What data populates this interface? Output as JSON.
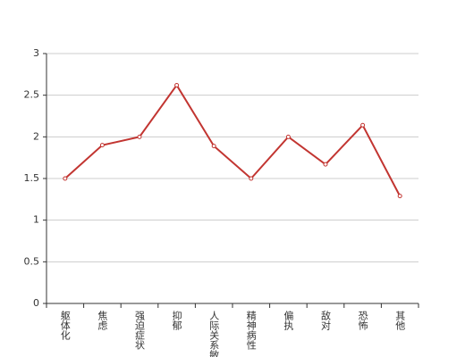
{
  "chart_data": {
    "type": "line",
    "categories": [
      "躯体化",
      "焦虑",
      "强迫症状",
      "抑郁",
      "人际关系敏感",
      "精神病性",
      "偏执",
      "敌对",
      "恐怖",
      "其他"
    ],
    "values": [
      1.5,
      1.9,
      2.0,
      2.62,
      1.89,
      1.5,
      2.0,
      1.67,
      2.14,
      1.29
    ],
    "color": "#c23531",
    "ylim": [
      0,
      3
    ],
    "yticks": [
      0,
      0.5,
      1,
      1.5,
      2,
      2.5,
      3
    ],
    "grid": true
  }
}
